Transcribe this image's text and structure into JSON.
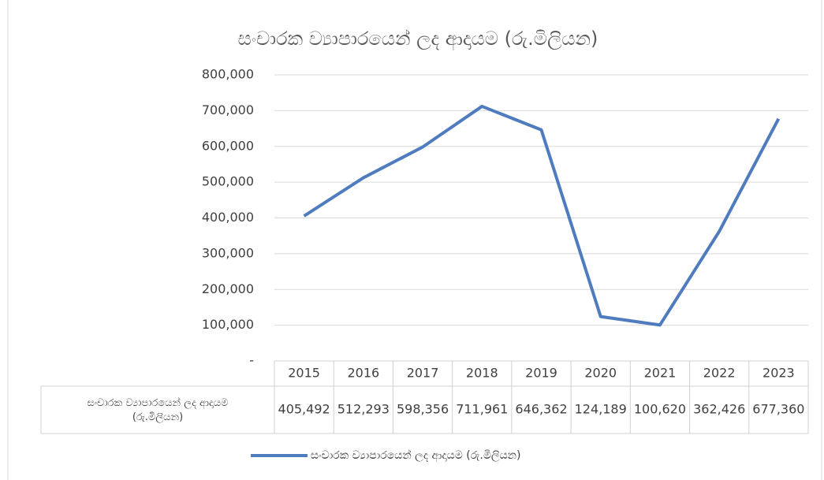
{
  "chart_data": {
    "type": "line",
    "title": "සංචාරක ව්‍යාපාරයෙන් ලද ආදායම (රු.මිලියන)",
    "categories": [
      "2015",
      "2016",
      "2017",
      "2018",
      "2019",
      "2020",
      "2021",
      "2022",
      "2023"
    ],
    "series": [
      {
        "name": "සංචාරක ව්‍යාපාරයෙන් ලද ආදායම (රු.මිලියන)",
        "color": "#4f7cbf",
        "values": [
          405492,
          512293,
          598356,
          711961,
          646362,
          124189,
          100620,
          362426,
          677360
        ],
        "value_labels": [
          "405,492",
          "512,293",
          "598,356",
          "711,961",
          "646,362",
          "124,189",
          "100,620",
          "362,426",
          "677,360"
        ]
      }
    ],
    "ylim": [
      0,
      800000
    ],
    "yticks": [
      {
        "value": 0,
        "label": "-"
      },
      {
        "value": 100000,
        "label": "100,000"
      },
      {
        "value": 200000,
        "label": "200,000"
      },
      {
        "value": 300000,
        "label": "300,000"
      },
      {
        "value": 400000,
        "label": "400,000"
      },
      {
        "value": 500000,
        "label": "500,000"
      },
      {
        "value": 600000,
        "label": "600,000"
      },
      {
        "value": 700000,
        "label": "700,000"
      },
      {
        "value": 800000,
        "label": "800,000"
      }
    ],
    "grid": true,
    "legend": "bottom",
    "data_table": true
  }
}
